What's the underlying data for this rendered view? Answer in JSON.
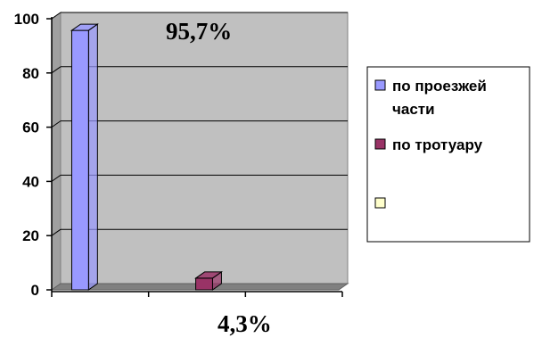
{
  "chart_data": {
    "type": "bar",
    "categories": [
      "",
      "",
      ""
    ],
    "series": [
      {
        "name": "по проезжей части",
        "values": [
          95.7,
          null,
          null
        ],
        "color": "#9999FF"
      },
      {
        "name": "по тротуару",
        "values": [
          null,
          4.3,
          null
        ],
        "color": "#993366"
      },
      {
        "name": "",
        "values": [
          null,
          null,
          null
        ],
        "color": "#FFFFCC"
      }
    ],
    "data_labels": [
      "95,7%",
      "4,3%"
    ],
    "y_ticks": [
      "0",
      "20",
      "40",
      "60",
      "80",
      "100"
    ],
    "ylim": [
      0,
      100
    ],
    "grid": true,
    "legend_position": "right",
    "plot_background": "#C0C0C0"
  }
}
